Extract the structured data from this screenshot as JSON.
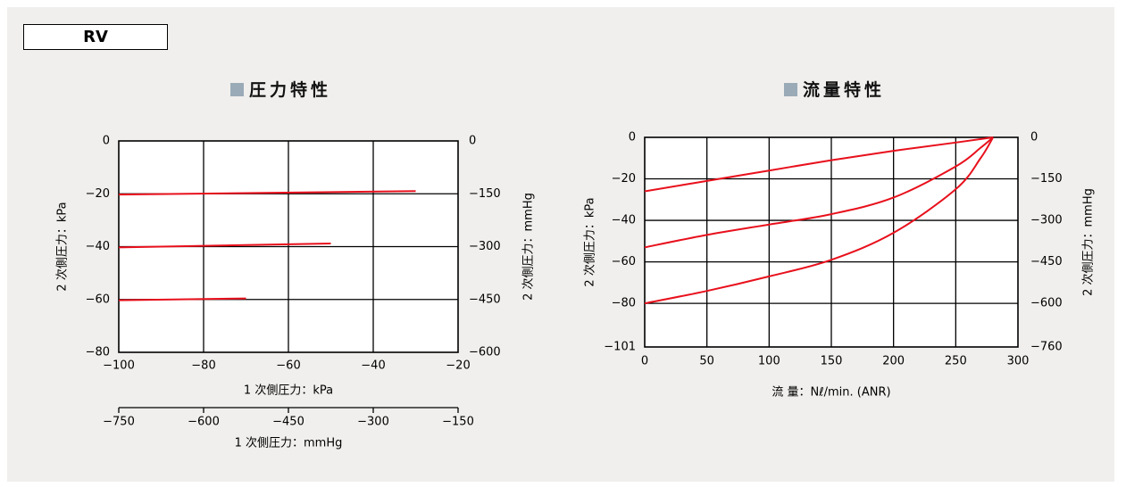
{
  "header": {
    "label": "RV"
  },
  "charts": {
    "pressure": {
      "title": "圧力特性"
    },
    "flow": {
      "title": "流量特性"
    }
  },
  "colors": {
    "series": "#e8101c",
    "title_square": "#9aaab7",
    "panel_bg": "#f0efed"
  },
  "chart_data": [
    {
      "type": "line",
      "title": "圧力特性",
      "xlabel": "1 次側圧力：kPa",
      "xlabel_secondary": "1 次側圧力：mmHg",
      "ylabel": "2 次側圧力：kPa",
      "ylabel_secondary": "2 次側圧力：mmHg",
      "xlim": [
        -100,
        -20
      ],
      "ylim": [
        -80,
        0
      ],
      "x_ticks": [
        "−100",
        "−80",
        "−60",
        "−40",
        "−20"
      ],
      "y_ticks": [
        "0",
        "−20",
        "−40",
        "−60",
        "−80"
      ],
      "x2_ticks": [
        "−750",
        "−600",
        "−450",
        "−300",
        "−150"
      ],
      "y2_ticks": [
        "0",
        "−150",
        "−300",
        "−450",
        "−600"
      ],
      "grid": true,
      "series": [
        {
          "x": [
            -100,
            -30
          ],
          "y": [
            -20.3,
            -19.0
          ]
        },
        {
          "x": [
            -100,
            -50
          ],
          "y": [
            -40.3,
            -38.8
          ]
        },
        {
          "x": [
            -100,
            -70
          ],
          "y": [
            -60.3,
            -59.6
          ]
        }
      ]
    },
    {
      "type": "line",
      "title": "流量特性",
      "xlabel": "流 量：Nℓ/min. (ANR)",
      "ylabel": "2 次側圧力：kPa",
      "ylabel_secondary": "2 次側圧力：mmHg",
      "xlim": [
        0,
        300
      ],
      "ylim": [
        -101,
        0
      ],
      "x_ticks": [
        "0",
        "50",
        "100",
        "150",
        "200",
        "250",
        "300"
      ],
      "y_ticks": [
        "0",
        "−20",
        "−40",
        "−60",
        "−80",
        "−101"
      ],
      "y2_ticks": [
        "0",
        "−150",
        "−300",
        "−450",
        "−600",
        "−760"
      ],
      "grid": true,
      "series": [
        {
          "x": [
            0,
            50,
            100,
            150,
            200,
            250,
            280
          ],
          "y": [
            -26,
            -21,
            -16,
            -11,
            -6.5,
            -2.5,
            0
          ]
        },
        {
          "x": [
            0,
            50,
            100,
            150,
            200,
            250,
            270,
            280
          ],
          "y": [
            -53,
            -47,
            -42,
            -37,
            -29,
            -14,
            -5,
            0
          ]
        },
        {
          "x": [
            0,
            50,
            100,
            150,
            200,
            250,
            270,
            280
          ],
          "y": [
            -80,
            -74,
            -67,
            -59,
            -46,
            -25,
            -10,
            0
          ]
        }
      ]
    }
  ]
}
